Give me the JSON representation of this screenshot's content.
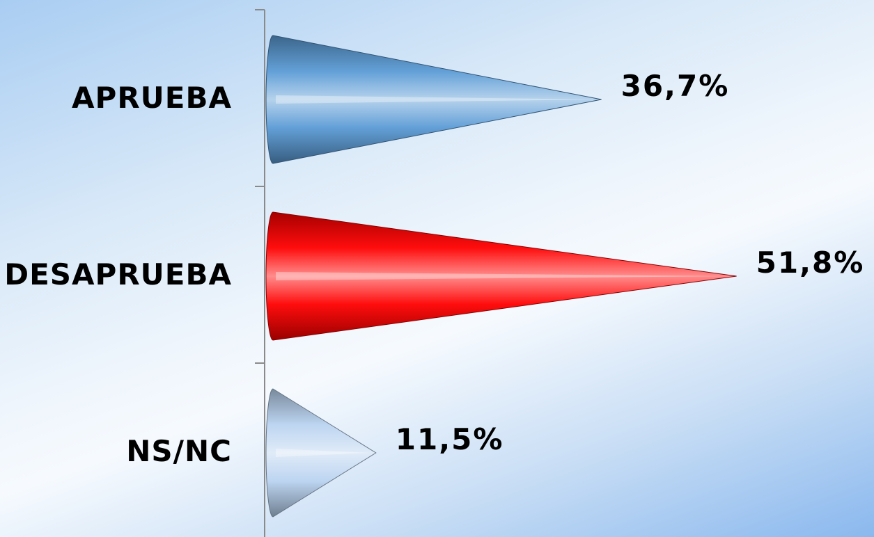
{
  "chart_data": {
    "type": "bar",
    "orientation": "horizontal",
    "shape": "cone",
    "categories": [
      "APRUEBA",
      "DESAPRUEBA",
      "NS/NC"
    ],
    "values": [
      36.7,
      51.8,
      11.5
    ],
    "value_labels": [
      "36,7%",
      "51,8%",
      "11,5%"
    ],
    "colors": [
      "#5b9bd5",
      "#ff0000",
      "#b9d3f0"
    ],
    "title": "",
    "xlabel": "",
    "ylabel": "",
    "grid": false,
    "legend": "none"
  }
}
